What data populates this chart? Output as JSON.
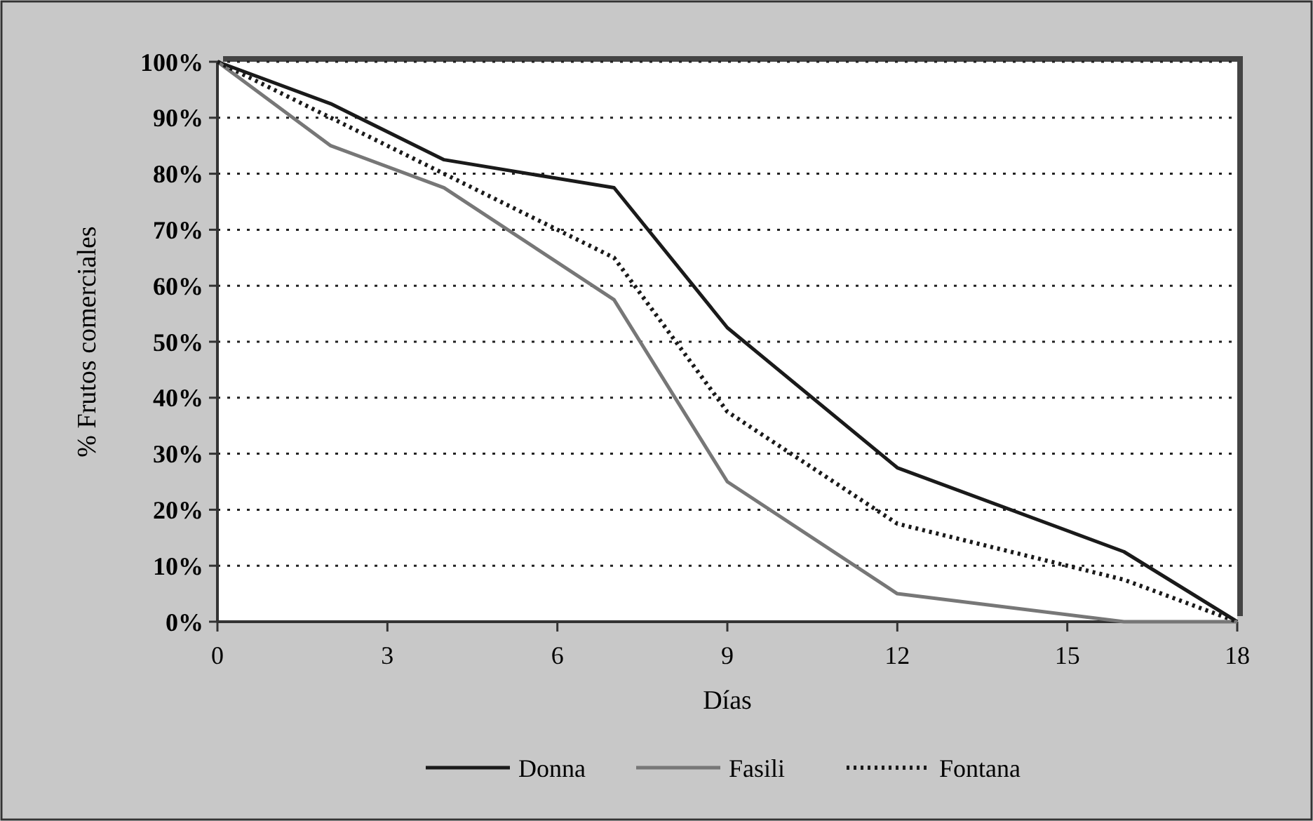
{
  "chart_data": {
    "type": "line",
    "xlabel": "Días",
    "ylabel": "% Frutos comerciales",
    "x": [
      0,
      2,
      4,
      7,
      9,
      12,
      16,
      18
    ],
    "series": [
      {
        "name": "Donna",
        "color": "#1a1a1a",
        "line_style": "solid",
        "values": [
          100,
          92.5,
          82.5,
          77.5,
          52.5,
          27.5,
          12.5,
          0
        ]
      },
      {
        "name": "Fasili",
        "color": "#777777",
        "line_style": "solid",
        "values": [
          100,
          85,
          77.5,
          57.5,
          25,
          5,
          0,
          0
        ]
      },
      {
        "name": "Fontana",
        "color": "#1a1a1a",
        "line_style": "dotted",
        "values": [
          100,
          90,
          80,
          65,
          37.5,
          17.5,
          7.5,
          0
        ]
      }
    ],
    "xlim": [
      0,
      18
    ],
    "xticks": [
      0,
      3,
      6,
      9,
      12,
      15,
      18
    ],
    "ylim": [
      0,
      100
    ],
    "yticks": [
      {
        "value": 0,
        "label": "0%"
      },
      {
        "value": 10,
        "label": "10%"
      },
      {
        "value": 20,
        "label": "20%"
      },
      {
        "value": 30,
        "label": "30%"
      },
      {
        "value": 40,
        "label": "40%"
      },
      {
        "value": 50,
        "label": "50%"
      },
      {
        "value": 60,
        "label": "60%"
      },
      {
        "value": 70,
        "label": "70%"
      },
      {
        "value": 80,
        "label": "80%"
      },
      {
        "value": 90,
        "label": "90%"
      },
      {
        "value": 100,
        "label": "100%"
      }
    ],
    "grid": "y",
    "legend": "bottom",
    "marker": "none"
  }
}
